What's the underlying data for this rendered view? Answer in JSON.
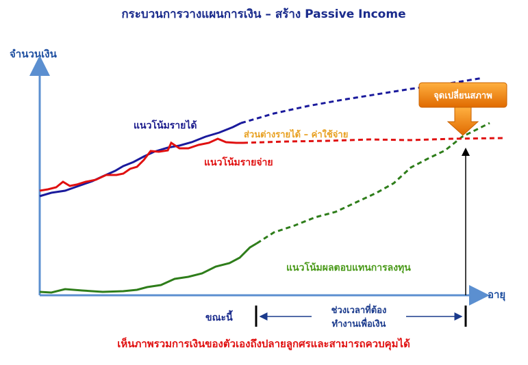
{
  "title": "กระบวนการวางแผนการเงิน – สร้าง Passive Income",
  "y_axis_label": "จำนวนเงิน",
  "x_axis_label": "อายุ",
  "labels": {
    "income_trend": "แนวโน้มรายได้",
    "expense_trend": "แนวโน้มรายจ่าย",
    "difference": "ส่วนต่างรายได้ – ค่าใช้จ่าย",
    "investment_return_trend": "แนวโน้มผลตอบแทนการลงทุน",
    "turning_point": "จุดเปลี่ยนสภาพ",
    "now": "ขณะนี้",
    "work_period_line1": "ช่วงเวลาที่ต้อง",
    "work_period_line2": "ทำงานเพื่อเงิน"
  },
  "footer": "เห็นภาพรวมการเงินของตัวเองถึงปลายลูกศรและสามารถควบคุมได้",
  "colors": {
    "income": "#1a1a8c",
    "expense": "#e01010",
    "investment_return": "#3a8a1a",
    "axis": "#5b8fd0",
    "turning_box": "#f08a1a",
    "difference_text": "#e8a020"
  }
}
